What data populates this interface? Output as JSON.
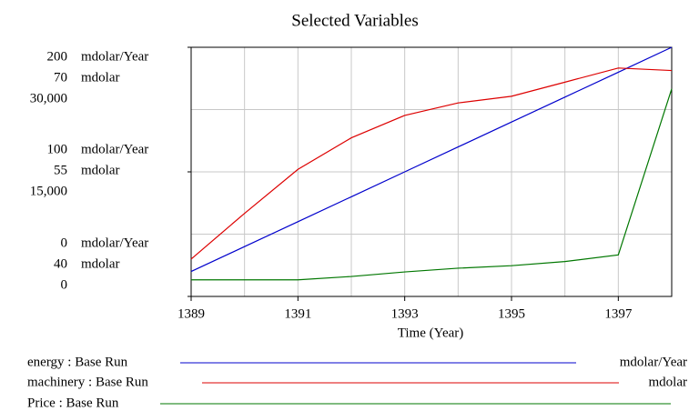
{
  "chart_data": {
    "type": "line",
    "title": "Selected Variables",
    "xlabel": "Time (Year)",
    "x": [
      1389,
      1390,
      1391,
      1392,
      1393,
      1394,
      1395,
      1396,
      1397,
      1398
    ],
    "xlim": [
      1389,
      1398
    ],
    "xticks": [
      1389,
      1391,
      1393,
      1395,
      1397
    ],
    "grid": true,
    "series": [
      {
        "name": "energy : Base Run",
        "unit": "mdolar/Year",
        "color": "#0000cc",
        "values": [
          20,
          40,
          60,
          80,
          100,
          120,
          140,
          160,
          180,
          200
        ],
        "ylim": [
          0,
          200
        ],
        "yticks": [
          0,
          100,
          200
        ]
      },
      {
        "name": "machinery : Base Run",
        "unit": "mdolar",
        "color": "#dd0000",
        "values": [
          44.5,
          50,
          55.3,
          59.1,
          61.8,
          63.3,
          64.1,
          65.8,
          67.5,
          67.2
        ],
        "ylim": [
          40,
          70
        ],
        "yticks": [
          40,
          55,
          70
        ]
      },
      {
        "name": "Price : Base Run",
        "color": "#007700",
        "values": [
          2000,
          2000,
          2000,
          2400,
          2950,
          3400,
          3700,
          4200,
          5000,
          25000
        ],
        "ylim": [
          0,
          30000
        ],
        "yticks": [
          0,
          {
            "value": 15000,
            "label": "15,000"
          },
          {
            "value": 30000,
            "label": "30,000"
          }
        ]
      }
    ]
  }
}
